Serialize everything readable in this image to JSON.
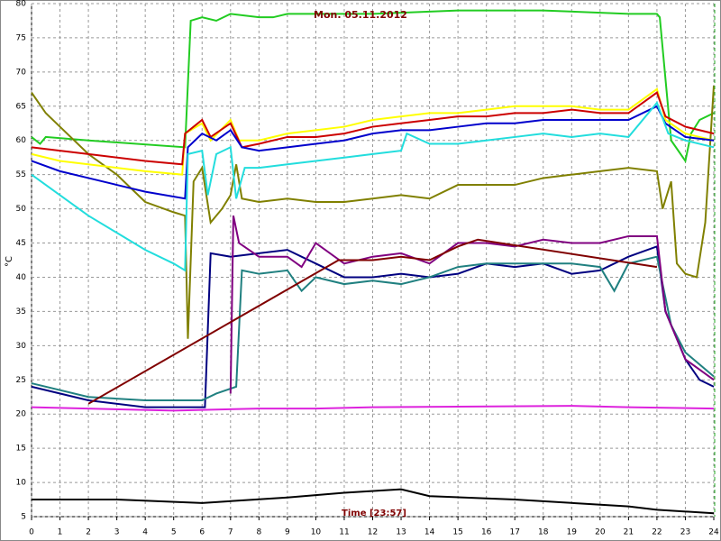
{
  "chart_data": {
    "type": "line",
    "title": "Mon. 05.11.2012",
    "x_label": "Time [23:57]",
    "y_label": "°C",
    "xlim": [
      0,
      24
    ],
    "ylim": [
      5,
      80
    ],
    "xticks": [
      0,
      1,
      2,
      3,
      4,
      5,
      6,
      7,
      8,
      9,
      10,
      11,
      12,
      13,
      14,
      15,
      16,
      17,
      18,
      19,
      20,
      21,
      22,
      23,
      24
    ],
    "yticks": [
      5,
      10,
      15,
      20,
      25,
      30,
      35,
      40,
      45,
      50,
      55,
      60,
      65,
      70,
      75,
      80
    ],
    "grid": true,
    "series": [
      {
        "color": "#22cc22",
        "x": [
          0,
          0.3,
          0.5,
          2,
          5.4,
          5.6,
          6,
          6.5,
          7,
          8,
          8.5,
          9,
          12,
          15,
          18,
          21,
          22,
          22.1,
          22.5,
          23,
          23.2,
          23.5,
          24
        ],
        "values": [
          60.5,
          59.5,
          60.5,
          60,
          59,
          77.5,
          78,
          77.5,
          78.5,
          78,
          78,
          78.5,
          78.5,
          79,
          79,
          78.5,
          78.5,
          78,
          60,
          57,
          61,
          63,
          64
        ]
      },
      {
        "color": "#808000",
        "x": [
          0,
          0.5,
          1,
          2,
          3,
          4,
          5,
          5.4,
          5.5,
          5.7,
          6,
          6.3,
          6.7,
          7,
          7.2,
          7.4,
          8,
          9,
          10,
          11,
          12,
          13,
          14,
          15,
          16,
          17,
          18,
          19,
          20,
          21,
          22,
          22.2,
          22.5,
          22.7,
          23,
          23.4,
          23.7,
          24
        ],
        "values": [
          67,
          64,
          62,
          58,
          55,
          51,
          49.5,
          49,
          31,
          54,
          56,
          48,
          50,
          52,
          56.5,
          51.5,
          51,
          51.5,
          51,
          51,
          51.5,
          52,
          51.5,
          53.5,
          53.5,
          53.5,
          54.5,
          55,
          55.5,
          56,
          55.5,
          50,
          54,
          42,
          40.5,
          40,
          48,
          68
        ]
      },
      {
        "color": "#ffff00",
        "x": [
          0,
          1,
          2,
          3,
          4,
          5.3,
          5.4,
          6,
          6.3,
          7,
          7.3,
          8,
          9,
          10,
          11,
          12,
          13,
          14,
          15,
          16,
          17,
          18,
          19,
          20,
          21,
          21.5,
          22,
          22.3,
          23,
          24
        ],
        "values": [
          58,
          57,
          56.5,
          56,
          55.5,
          55,
          61,
          62.5,
          60,
          63,
          60,
          60,
          61,
          61.5,
          62,
          63,
          63.5,
          64,
          64,
          64.5,
          65,
          65,
          65,
          64.5,
          64.5,
          66,
          67.5,
          63,
          61,
          60
        ]
      },
      {
        "color": "#cc0000",
        "x": [
          0,
          2,
          4,
          5.3,
          5.4,
          6,
          6.3,
          7,
          7.4,
          8,
          9,
          10,
          11,
          12,
          13,
          14,
          15,
          16,
          17,
          18,
          19,
          20,
          21,
          22,
          22.3,
          23,
          24
        ],
        "values": [
          59,
          58,
          57,
          56.5,
          61,
          63,
          60.5,
          62.5,
          59,
          59.5,
          60.5,
          60.5,
          61,
          62,
          62.5,
          63,
          63.5,
          63.5,
          64,
          64,
          64.5,
          64,
          64,
          67,
          63.5,
          62,
          61
        ]
      },
      {
        "color": "#0000cc",
        "x": [
          0,
          1,
          2,
          3,
          4,
          5.4,
          5.5,
          6,
          6.5,
          7,
          7.4,
          8,
          9,
          10,
          11,
          12,
          13,
          14,
          15,
          16,
          17,
          18,
          19,
          20,
          21,
          22,
          22.3,
          23,
          24
        ],
        "values": [
          57,
          55.5,
          54.5,
          53.5,
          52.5,
          51.5,
          59,
          61,
          60,
          61.5,
          59,
          58.5,
          59,
          59.5,
          60,
          61,
          61.5,
          61.5,
          62,
          62.5,
          62.5,
          63,
          63,
          63,
          63,
          65,
          62.5,
          60.5,
          60
        ]
      },
      {
        "color": "#22dddd",
        "x": [
          0,
          1,
          2,
          3,
          4,
          5,
          5.4,
          5.5,
          6,
          6.2,
          6.5,
          7,
          7.2,
          7.5,
          8,
          9,
          10,
          11,
          12,
          13,
          13.2,
          14,
          15,
          16,
          17,
          18,
          19,
          20,
          21,
          22,
          22.4,
          23,
          24
        ],
        "values": [
          55,
          52,
          49,
          46.5,
          44,
          42,
          41,
          58,
          58.5,
          52,
          58,
          59,
          51.5,
          56,
          56,
          56.5,
          57,
          57.5,
          58,
          58.5,
          61,
          59.5,
          59.5,
          60,
          60.5,
          61,
          60.5,
          61,
          60.5,
          65.5,
          61,
          60,
          59
        ]
      },
      {
        "color": "#dd22dd",
        "x": [
          0,
          5,
          8,
          10,
          12,
          19,
          21,
          24
        ],
        "values": [
          21,
          20.5,
          20.8,
          20.8,
          21,
          21.2,
          21,
          20.8
        ]
      },
      {
        "color": "#000000",
        "x": [
          0,
          3,
          6,
          9,
          11,
          13,
          14,
          17,
          21,
          22,
          24
        ],
        "values": [
          7.5,
          7.5,
          7,
          7.8,
          8.5,
          9,
          8,
          7.5,
          6.5,
          6,
          5.5
        ]
      },
      {
        "color": "#000080",
        "x": [
          0,
          2,
          4,
          6.1,
          6.3,
          7,
          8,
          9,
          10,
          11,
          12,
          13,
          14,
          15,
          16,
          17,
          18,
          19,
          20,
          21,
          22,
          22.3,
          23,
          23.5,
          24
        ],
        "values": [
          24,
          22,
          21,
          21,
          43.5,
          43,
          43.5,
          44,
          42,
          40,
          40,
          40.5,
          40,
          40.5,
          42,
          41.5,
          42,
          40.5,
          41,
          43,
          44.5,
          35,
          28,
          25,
          24
        ]
      },
      {
        "color": "#208080",
        "x": [
          0,
          2,
          4,
          6,
          6.5,
          7.2,
          7.4,
          8,
          9,
          9.5,
          10,
          11,
          12,
          13,
          14,
          15,
          16,
          17,
          18,
          19,
          20,
          20.5,
          21,
          22,
          22.5,
          23,
          24
        ],
        "values": [
          24.5,
          22.5,
          22,
          22,
          23,
          24,
          41,
          40.5,
          41,
          38,
          40,
          39,
          39.5,
          39,
          40,
          41.5,
          42,
          42,
          42,
          42,
          41.5,
          38,
          42,
          43,
          33,
          29,
          25.5
        ]
      },
      {
        "color": "#800080",
        "x": [
          7,
          7.1,
          7.3,
          8,
          9,
          9.5,
          10,
          11,
          12,
          13,
          14,
          15,
          16,
          17,
          18,
          19,
          20,
          21,
          22,
          22.3,
          23,
          24
        ],
        "values": [
          23,
          49,
          45,
          43,
          43,
          41.5,
          45,
          42,
          43,
          43.5,
          42,
          45,
          45,
          44.5,
          45.5,
          45,
          45,
          46,
          46,
          35,
          28,
          25
        ]
      },
      {
        "color": "#800000",
        "x": [
          2,
          10.8,
          12,
          13,
          14,
          15,
          15.7,
          22
        ],
        "values": [
          21.5,
          42.5,
          42.5,
          43,
          42.5,
          44.5,
          45.5,
          41.5
        ]
      }
    ]
  }
}
